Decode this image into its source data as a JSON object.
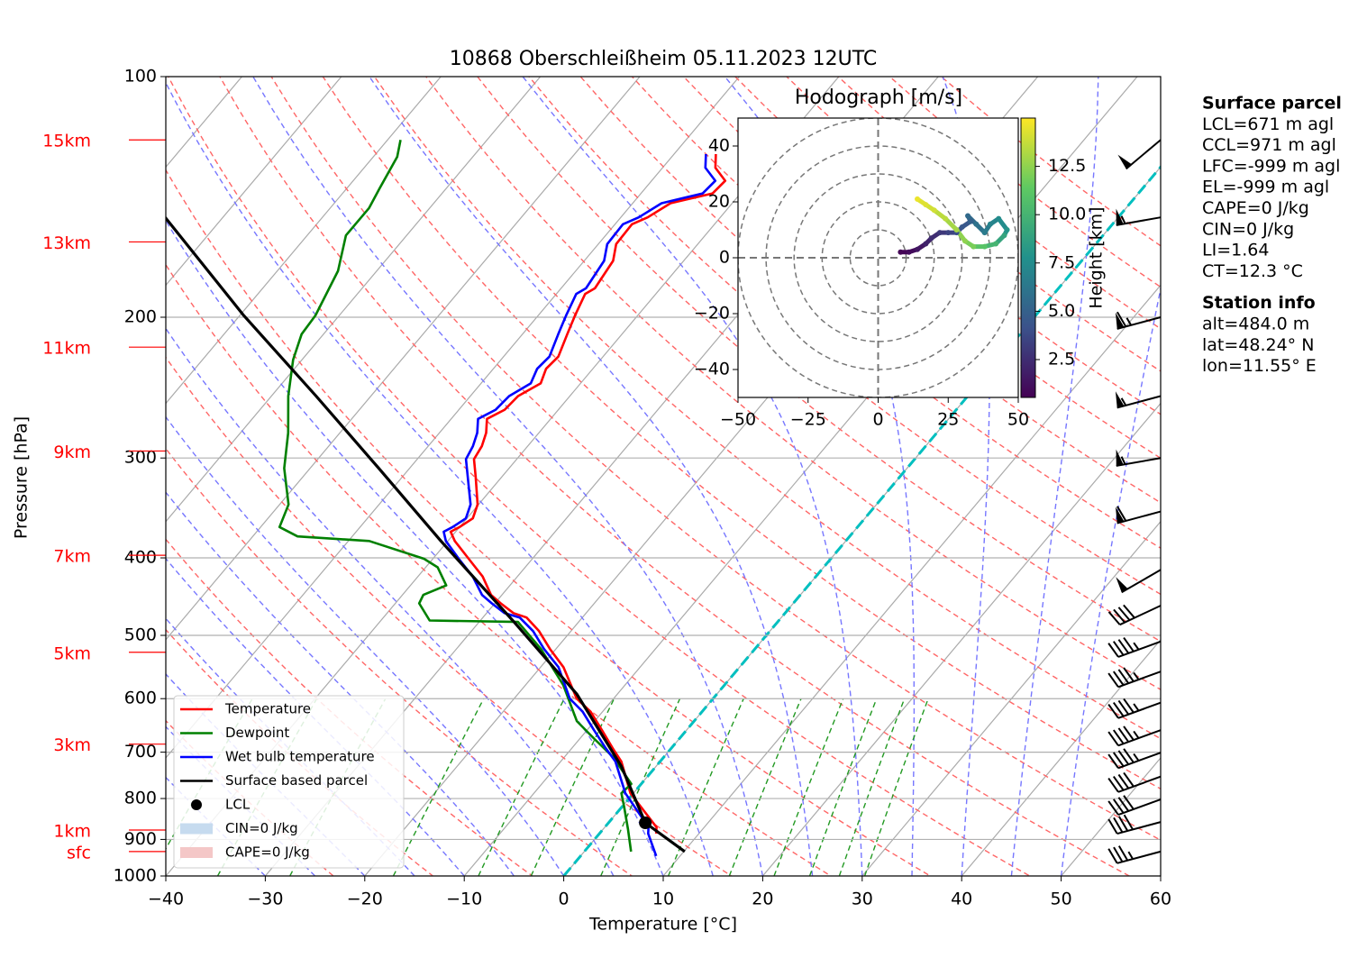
{
  "chart_data": [
    {
      "type": "skewt",
      "title": "10868 Oberschleißheim 05.11.2023 12UTC",
      "x_label": "Temperature [°C]",
      "y_label": "Pressure [hPa]",
      "xlim": [
        -40,
        60
      ],
      "ylim": [
        1000,
        100
      ],
      "yscale": "log",
      "grid": true,
      "xticks": [
        {
          "value": -40,
          "label": "−40"
        },
        {
          "value": -30,
          "label": "−30"
        },
        {
          "value": -20,
          "label": "−20"
        },
        {
          "value": -10,
          "label": "−10"
        },
        0,
        10,
        20,
        30,
        40,
        50,
        60
      ],
      "yticks": [
        100,
        200,
        300,
        400,
        500,
        600,
        700,
        800,
        900,
        1000
      ],
      "height_labels": [
        {
          "value": 120,
          "label": "15km"
        },
        {
          "value": 161,
          "label": "13km"
        },
        {
          "value": 218,
          "label": "11km"
        },
        {
          "value": 294,
          "label": "9km"
        },
        {
          "value": 397,
          "label": "7km"
        },
        {
          "value": 525,
          "label": "5km"
        },
        {
          "value": 684,
          "label": "3km"
        },
        {
          "value": 876,
          "label": "1km"
        },
        {
          "value": 932,
          "label": "sfc"
        }
      ],
      "height_label_color": "#ff0000",
      "series": [
        {
          "name": "Temperature",
          "color": "#ff0000",
          "pressure": [
            885,
            869,
            788,
            719,
            692,
            657,
            623,
            600,
            548,
            520,
            494,
            475,
            469,
            456,
            445,
            422,
            401,
            381,
            371,
            366,
            357,
            343,
            317,
            301,
            290,
            279,
            268,
            261,
            251,
            242,
            232,
            224,
            210,
            199,
            187,
            184,
            170,
            162,
            153,
            150,
            144,
            140,
            135,
            130,
            125
          ],
          "temperature": [
            5.7,
            5.2,
            -0.3,
            -3.9,
            -5.9,
            -8.5,
            -11.2,
            -13.7,
            -17.7,
            -20.6,
            -23.2,
            -25.6,
            -27.3,
            -29.4,
            -31.1,
            -33.5,
            -36.4,
            -39.3,
            -40.5,
            -40.0,
            -39.4,
            -40.1,
            -42.6,
            -44.3,
            -44.6,
            -45.3,
            -46.4,
            -45.4,
            -45.2,
            -44.0,
            -44.7,
            -44.5,
            -45.5,
            -46.3,
            -47.1,
            -46.6,
            -47.1,
            -48.2,
            -48.3,
            -47.3,
            -46.2,
            -42.8,
            -42.6,
            -44.7,
            -45.8
          ]
        },
        {
          "name": "Dewpoint",
          "color": "#008000",
          "pressure": [
            932,
            874,
            819,
            788,
            767,
            710,
            674,
            640,
            577,
            520,
            481,
            479,
            456,
            445,
            433,
            411,
            401,
            381,
            376,
            366,
            343,
            309,
            279,
            251,
            226,
            210,
            199,
            175,
            158,
            146,
            138,
            126,
            120
          ],
          "temperature": [
            4.7,
            2.5,
            0.2,
            -1.2,
            -1.0,
            -5.1,
            -8.5,
            -11.8,
            -16.2,
            -21.5,
            -26.1,
            -35.1,
            -37.6,
            -37.9,
            -36.4,
            -38.8,
            -40.9,
            -47.9,
            -55.5,
            -58.1,
            -59.1,
            -62.6,
            -65.2,
            -68.3,
            -70.9,
            -72.2,
            -72.4,
            -73.9,
            -76.1,
            -76.1,
            -76.7,
            -77.6,
            -78.7
          ]
        },
        {
          "name": "Wet bulb temperature",
          "color": "#0000ff",
          "pressure": [
            944,
            885,
            869,
            788,
            719,
            692,
            657,
            623,
            600,
            548,
            520,
            494,
            475,
            469,
            456,
            445,
            422,
            401,
            381,
            371,
            366,
            357,
            343,
            317,
            301,
            290,
            279,
            268,
            261,
            251,
            242,
            232,
            224,
            210,
            199,
            187,
            184,
            170,
            162,
            153,
            150,
            144,
            140,
            135,
            130,
            125
          ],
          "temperature": [
            7.6,
            4.9,
            4.4,
            -0.8,
            -4.5,
            -6.6,
            -9.3,
            -12.0,
            -14.4,
            -18.2,
            -21.2,
            -23.8,
            -26.3,
            -28.2,
            -30.3,
            -32.0,
            -34.5,
            -37.4,
            -40.2,
            -41.2,
            -40.7,
            -40.1,
            -40.8,
            -43.4,
            -45.1,
            -45.5,
            -46.2,
            -47.3,
            -46.3,
            -46.1,
            -45.0,
            -45.6,
            -45.4,
            -46.4,
            -47.2,
            -48.0,
            -47.5,
            -48.0,
            -49.1,
            -49.2,
            -48.2,
            -47.1,
            -43.8,
            -43.6,
            -45.7,
            -46.8
          ]
        },
        {
          "name": "Surface based parcel",
          "color": "#000000",
          "pressure": [
            932,
            858,
            729,
            592,
            481,
            381,
            309,
            251,
            199,
            150
          ],
          "temperature": [
            10.1,
            3.7,
            -3.5,
            -14.1,
            -26.5,
            -40.7,
            -53.1,
            -65.5,
            -79.6,
            -95.8
          ]
        }
      ],
      "lcl": {
        "name": "LCL",
        "pressure": 858,
        "temperature": 3.7,
        "color": "#000000"
      },
      "cin": {
        "name": "CIN=0 J/kg",
        "color": "#c6dbef"
      },
      "cape": {
        "name": "CAPE=0 J/kg",
        "color": "#f4c7c7"
      },
      "wind": {
        "pressure": [
          932,
          856,
          802,
          751,
          701,
          657,
          607,
          555,
          509,
          459,
          414,
          350,
          300,
          251,
          200,
          150,
          120
        ],
        "speed": [
          35,
          40,
          40,
          40,
          45,
          45,
          45,
          45,
          45,
          40,
          50,
          60,
          55,
          55,
          65,
          55,
          50
        ],
        "direction": [
          255,
          255,
          250,
          250,
          250,
          250,
          250,
          250,
          250,
          245,
          240,
          255,
          260,
          255,
          255,
          260,
          230
        ]
      }
    },
    {
      "type": "hodograph",
      "title": "Hodograph [m/s]",
      "colorbar_label": "Height [km]",
      "xlim": [
        -50,
        50
      ],
      "ylim": [
        -50,
        50
      ],
      "xticks": [
        {
          "value": -50,
          "label": "−50"
        },
        {
          "value": -25,
          "label": "−25"
        },
        0,
        25,
        50
      ],
      "yticks": [
        {
          "value": -40,
          "label": "−40"
        },
        {
          "value": -20,
          "label": "−20"
        },
        0,
        20,
        40
      ],
      "clim": [
        0.54,
        15.0
      ],
      "cticks": [
        2.5,
        {
          "value": 5.0,
          "label": "5.0"
        },
        7.5,
        {
          "value": 10.0,
          "label": "10.0"
        },
        12.5
      ],
      "colormap": "viridis",
      "u": [
        8,
        11,
        14,
        17,
        19,
        22,
        25,
        28,
        30,
        33,
        32,
        35,
        38,
        40,
        43,
        46,
        45,
        42,
        38,
        34,
        31,
        28,
        24,
        20,
        17,
        14
      ],
      "v": [
        2,
        2,
        3,
        5,
        7,
        9,
        9,
        9,
        11,
        13,
        15,
        12,
        9,
        12,
        14,
        10,
        8,
        5,
        4,
        4,
        6,
        10,
        14,
        17,
        19,
        21
      ],
      "height": [
        0.7,
        1,
        1.5,
        2,
        2.5,
        3,
        3.5,
        4,
        4.5,
        5,
        5.5,
        6,
        6.5,
        7,
        7.5,
        8,
        9,
        10,
        11,
        12,
        12.5,
        13,
        13.5,
        14,
        14.3,
        14.6
      ]
    }
  ],
  "surface_parcel": {
    "title": "Surface parcel",
    "lines": [
      "LCL=671 m agl",
      "CCL=971 m agl",
      "LFC=-999 m agl",
      "EL=-999 m agl",
      "CAPE=0 J/kg",
      "CIN=0 J/kg",
      "LI=1.64",
      "CT=12.3 °C"
    ]
  },
  "station_info": {
    "title": "Station info",
    "lines": [
      "alt=484.0 m",
      "lat=48.24° N",
      "lon=11.55° E"
    ]
  }
}
